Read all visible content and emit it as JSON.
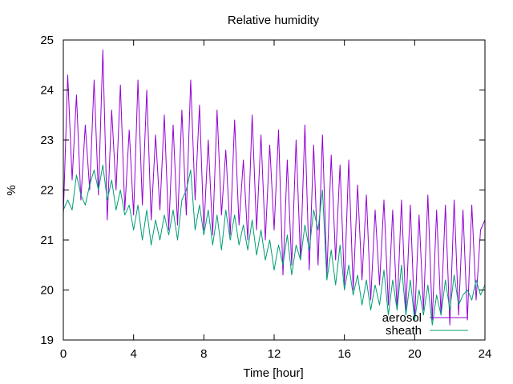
{
  "chart_data": {
    "type": "line",
    "title": "Relative humidity",
    "xlabel": "Time [hour]",
    "ylabel": "%",
    "xlim": [
      0,
      24
    ],
    "ylim": [
      19,
      25
    ],
    "xticks": [
      0,
      4,
      8,
      12,
      16,
      20,
      24
    ],
    "yticks": [
      19,
      20,
      21,
      22,
      23,
      24,
      25
    ],
    "grid": false,
    "legend_position": "bottom-right",
    "series": [
      {
        "name": "aerosol",
        "color": "#9400d3",
        "x": [
          0,
          0.25,
          0.5,
          0.75,
          1,
          1.25,
          1.5,
          1.75,
          2,
          2.25,
          2.5,
          2.75,
          3,
          3.25,
          3.5,
          3.75,
          4,
          4.25,
          4.5,
          4.75,
          5,
          5.25,
          5.5,
          5.75,
          6,
          6.25,
          6.5,
          6.75,
          7,
          7.25,
          7.5,
          7.75,
          8,
          8.25,
          8.5,
          8.75,
          9,
          9.25,
          9.5,
          9.75,
          10,
          10.25,
          10.5,
          10.75,
          11,
          11.25,
          11.5,
          11.75,
          12,
          12.25,
          12.5,
          12.75,
          13,
          13.25,
          13.5,
          13.75,
          14,
          14.25,
          14.5,
          14.75,
          15,
          15.25,
          15.5,
          15.75,
          16,
          16.25,
          16.5,
          16.75,
          17,
          17.25,
          17.5,
          17.75,
          18,
          18.25,
          18.5,
          18.75,
          19,
          19.25,
          19.5,
          19.75,
          20,
          20.25,
          20.5,
          20.75,
          21,
          21.25,
          21.5,
          21.75,
          22,
          22.25,
          22.5,
          22.75,
          23,
          23.25,
          23.5,
          23.75,
          24
        ],
        "y": [
          21.5,
          24.3,
          22.2,
          23.9,
          21.8,
          23.3,
          22.0,
          24.2,
          21.9,
          24.8,
          21.4,
          23.6,
          22.0,
          24.1,
          21.6,
          23.2,
          21.5,
          24.2,
          21.7,
          24.0,
          21.4,
          23.1,
          21.6,
          23.5,
          21.2,
          23.3,
          21.3,
          23.6,
          21.5,
          24.2,
          21.8,
          23.7,
          21.2,
          23.0,
          21.1,
          23.6,
          21.5,
          22.8,
          21.1,
          23.4,
          21.3,
          22.6,
          21.0,
          23.5,
          21.2,
          23.1,
          21.0,
          22.9,
          21.2,
          23.2,
          20.3,
          22.6,
          20.5,
          23.0,
          20.6,
          23.3,
          20.4,
          22.9,
          20.5,
          23.1,
          20.3,
          22.7,
          20.6,
          22.5,
          20.1,
          22.6,
          20.0,
          22.1,
          20.2,
          21.9,
          19.8,
          21.6,
          20.1,
          21.8,
          19.7,
          21.6,
          19.6,
          21.8,
          19.6,
          21.7,
          19.4,
          21.5,
          19.6,
          21.9,
          19.4,
          21.6,
          19.5,
          21.7,
          19.3,
          21.8,
          19.5,
          21.6,
          19.4,
          21.7,
          19.8,
          21.2,
          21.4
        ]
      },
      {
        "name": "sheath",
        "color": "#009e73",
        "x": [
          0,
          0.25,
          0.5,
          0.75,
          1,
          1.25,
          1.5,
          1.75,
          2,
          2.25,
          2.5,
          2.75,
          3,
          3.25,
          3.5,
          3.75,
          4,
          4.25,
          4.5,
          4.75,
          5,
          5.25,
          5.5,
          5.75,
          6,
          6.25,
          6.5,
          6.75,
          7,
          7.25,
          7.5,
          7.75,
          8,
          8.25,
          8.5,
          8.75,
          9,
          9.25,
          9.5,
          9.75,
          10,
          10.25,
          10.5,
          10.75,
          11,
          11.25,
          11.5,
          11.75,
          12,
          12.25,
          12.5,
          12.75,
          13,
          13.25,
          13.5,
          13.75,
          14,
          14.25,
          14.5,
          14.75,
          15,
          15.25,
          15.5,
          15.75,
          16,
          16.25,
          16.5,
          16.75,
          17,
          17.25,
          17.5,
          17.75,
          18,
          18.25,
          18.5,
          18.75,
          19,
          19.25,
          19.5,
          19.75,
          20,
          20.25,
          20.5,
          20.75,
          21,
          21.25,
          21.5,
          21.75,
          22,
          22.25,
          22.5,
          22.75,
          23,
          23.25,
          23.5,
          23.75,
          24
        ],
        "y": [
          21.6,
          21.8,
          21.6,
          22.3,
          21.9,
          21.7,
          22.1,
          22.4,
          22.0,
          22.5,
          21.8,
          22.2,
          21.6,
          22.0,
          21.5,
          21.7,
          21.2,
          21.7,
          21.0,
          21.6,
          20.9,
          21.4,
          21.0,
          21.5,
          21.1,
          21.6,
          21.0,
          21.8,
          22.0,
          22.4,
          21.2,
          21.7,
          21.1,
          21.6,
          20.9,
          21.5,
          20.8,
          21.6,
          21.0,
          21.5,
          20.9,
          21.3,
          20.8,
          21.4,
          20.7,
          21.2,
          20.6,
          21.0,
          20.4,
          20.9,
          20.5,
          21.1,
          20.3,
          20.9,
          20.6,
          21.3,
          20.8,
          21.6,
          21.2,
          22.0,
          20.2,
          20.8,
          20.1,
          20.9,
          20.0,
          20.5,
          19.9,
          20.3,
          19.7,
          20.2,
          19.6,
          20.1,
          19.7,
          20.4,
          19.5,
          20.2,
          19.6,
          20.5,
          19.5,
          20.2,
          19.4,
          20.0,
          19.5,
          20.1,
          19.3,
          19.9,
          19.5,
          20.2,
          19.6,
          20.3,
          19.7,
          19.9,
          20.0,
          19.8,
          20.2,
          19.9,
          20.1
        ]
      }
    ]
  }
}
